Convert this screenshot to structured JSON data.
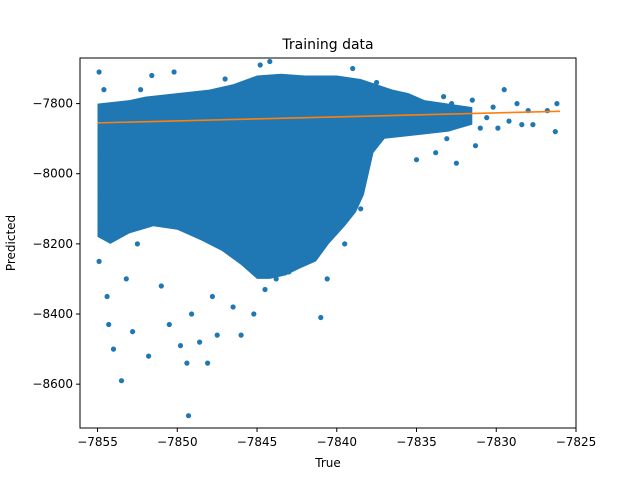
{
  "chart_data": {
    "type": "scatter",
    "title": "Training data",
    "xlabel": "True",
    "ylabel": "Predicted",
    "xlim": [
      -7856.1,
      -7825.0
    ],
    "ylim": [
      -8725,
      -7670
    ],
    "xticks": [
      -7855,
      -7850,
      -7845,
      -7840,
      -7835,
      -7830,
      -7825
    ],
    "xtick_labels": [
      "−7855",
      "−7850",
      "−7845",
      "−7840",
      "−7835",
      "−7830",
      "−7825"
    ],
    "yticks": [
      -8600,
      -8400,
      -8200,
      -8000,
      -7800
    ],
    "ytick_labels": [
      "−8600",
      "−8400",
      "−8200",
      "−8000",
      "−7800"
    ],
    "grid": false,
    "series": [
      {
        "kind": "scatter",
        "color": "#1f77b4",
        "points": [
          [
            -7854.9,
            -7710
          ],
          [
            -7854.6,
            -7760
          ],
          [
            -7854.8,
            -7850
          ],
          [
            -7854.5,
            -7950
          ],
          [
            -7854.7,
            -8050
          ],
          [
            -7854.8,
            -8160
          ],
          [
            -7854.9,
            -8250
          ],
          [
            -7854.4,
            -8350
          ],
          [
            -7854.3,
            -8430
          ],
          [
            -7854.0,
            -8500
          ],
          [
            -7853.5,
            -8590
          ],
          [
            -7853.2,
            -8300
          ],
          [
            -7852.8,
            -8450
          ],
          [
            -7852.5,
            -8200
          ],
          [
            -7852.3,
            -7760
          ],
          [
            -7851.6,
            -7720
          ],
          [
            -7851.8,
            -8520
          ],
          [
            -7851.0,
            -8320
          ],
          [
            -7850.5,
            -8430
          ],
          [
            -7850.2,
            -7710
          ],
          [
            -7849.8,
            -8490
          ],
          [
            -7849.4,
            -8540
          ],
          [
            -7849.3,
            -8690
          ],
          [
            -7849.1,
            -8400
          ],
          [
            -7848.6,
            -8480
          ],
          [
            -7848.1,
            -8540
          ],
          [
            -7847.8,
            -8350
          ],
          [
            -7847.5,
            -8460
          ],
          [
            -7847.0,
            -7730
          ],
          [
            -7846.5,
            -8380
          ],
          [
            -7846.0,
            -8460
          ],
          [
            -7845.6,
            -8200
          ],
          [
            -7845.2,
            -8400
          ],
          [
            -7844.8,
            -7690
          ],
          [
            -7844.5,
            -8330
          ],
          [
            -7844.2,
            -7680
          ],
          [
            -7843.8,
            -8300
          ],
          [
            -7843.0,
            -8280
          ],
          [
            -7842.2,
            -8250
          ],
          [
            -7841.0,
            -8410
          ],
          [
            -7840.6,
            -8300
          ],
          [
            -7840.2,
            -7740
          ],
          [
            -7839.5,
            -8200
          ],
          [
            -7839.0,
            -7700
          ],
          [
            -7838.5,
            -8100
          ],
          [
            -7838.0,
            -7880
          ],
          [
            -7837.5,
            -7740
          ],
          [
            -7837.0,
            -7890
          ],
          [
            -7836.4,
            -7780
          ],
          [
            -7835.5,
            -7820
          ],
          [
            -7835.0,
            -7960
          ],
          [
            -7834.5,
            -7800
          ],
          [
            -7834.0,
            -7850
          ],
          [
            -7833.8,
            -7940
          ],
          [
            -7833.3,
            -7780
          ],
          [
            -7833.1,
            -7900
          ],
          [
            -7832.8,
            -7800
          ],
          [
            -7832.5,
            -7970
          ],
          [
            -7832.1,
            -7860
          ],
          [
            -7831.8,
            -7830
          ],
          [
            -7831.5,
            -7790
          ],
          [
            -7831.3,
            -7920
          ],
          [
            -7831.0,
            -7870
          ],
          [
            -7830.6,
            -7840
          ],
          [
            -7830.2,
            -7810
          ],
          [
            -7829.9,
            -7870
          ],
          [
            -7829.5,
            -7760
          ],
          [
            -7829.2,
            -7850
          ],
          [
            -7828.7,
            -7800
          ],
          [
            -7828.4,
            -7860
          ],
          [
            -7828.0,
            -7820
          ],
          [
            -7827.7,
            -7860
          ],
          [
            -7826.8,
            -7820
          ],
          [
            -7826.2,
            -7800
          ],
          [
            -7826.3,
            -7880
          ]
        ]
      },
      {
        "kind": "line",
        "color": "#ff7f0e",
        "x": [
          -7855,
          -7826
        ],
        "y": [
          -7855,
          -7822
        ]
      }
    ]
  }
}
